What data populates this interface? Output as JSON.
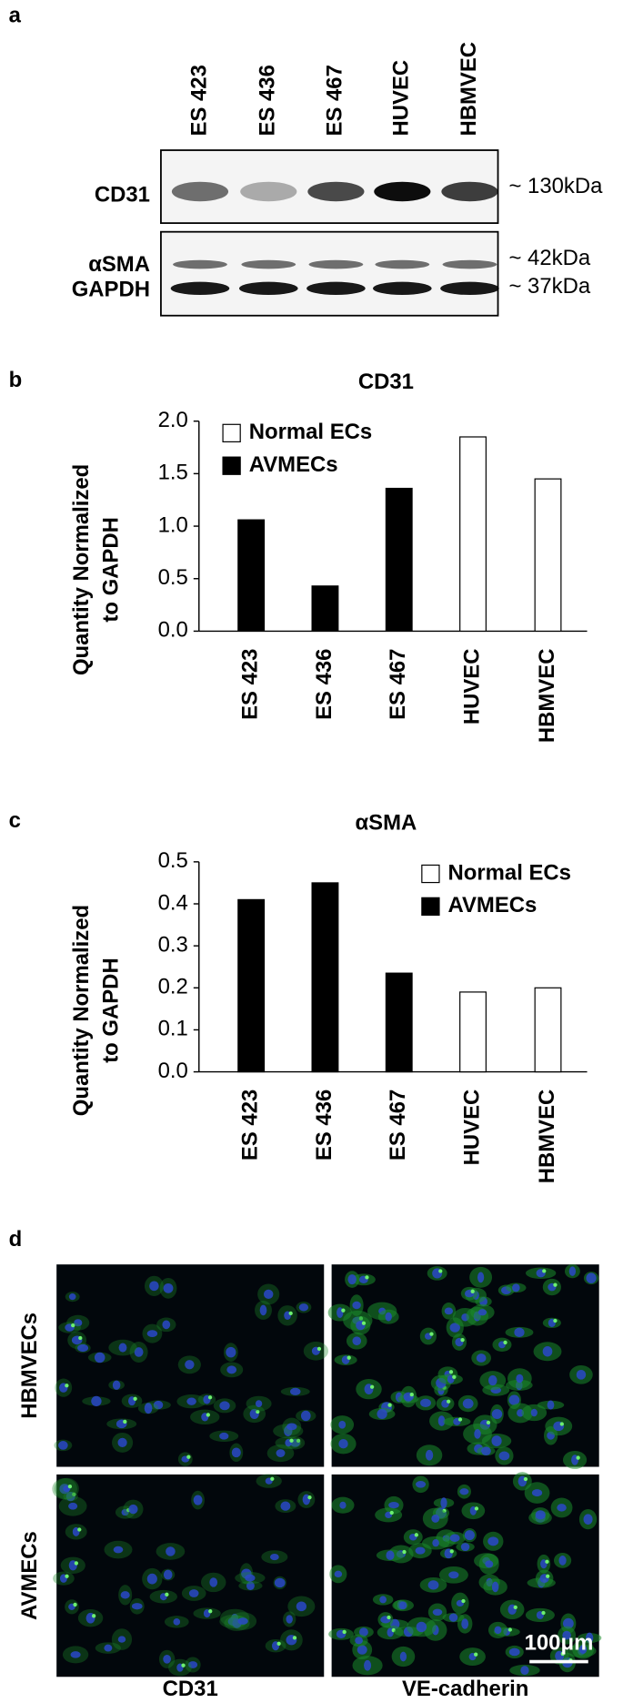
{
  "panel_a": {
    "label": "a",
    "lanes": [
      "ES 423",
      "ES 436",
      "ES 467",
      "HUVEC",
      "HBMVEC"
    ],
    "rows": [
      "CD31",
      "αSMA",
      "GAPDH"
    ],
    "sizes": [
      "~ 130kDa",
      "~ 42kDa",
      "~ 37kDa"
    ]
  },
  "chart_data": [
    {
      "panel": "b",
      "type": "bar",
      "title": "CD31",
      "ylabel": [
        "Quantity Normalized",
        "to GAPDH"
      ],
      "categories": [
        "ES 423",
        "ES 436",
        "ES 467",
        "HUVEC",
        "HBMVEC"
      ],
      "series": [
        {
          "name": "Normal ECs",
          "color": "#ffffff",
          "values": [
            null,
            null,
            null,
            1.85,
            1.45
          ]
        },
        {
          "name": "AVMECs",
          "color": "#000000",
          "values": [
            1.06,
            0.43,
            1.36,
            null,
            null
          ]
        }
      ],
      "ylim": [
        0,
        2
      ],
      "yticks": [
        {
          "value": 0,
          "label": "0.0"
        },
        0.5,
        {
          "value": 1,
          "label": "1.0"
        },
        1.5,
        {
          "value": 2,
          "label": "2.0"
        }
      ],
      "legend": "upper left"
    },
    {
      "panel": "c",
      "type": "bar",
      "title": "αSMA",
      "ylabel": [
        "Quantity Normalized",
        "to GAPDH"
      ],
      "categories": [
        "ES 423",
        "ES 436",
        "ES 467",
        "HUVEC",
        "HBMVEC"
      ],
      "series": [
        {
          "name": "Normal ECs",
          "color": "#ffffff",
          "values": [
            null,
            null,
            null,
            0.19,
            0.2
          ]
        },
        {
          "name": "AVMECs",
          "color": "#000000",
          "values": [
            0.41,
            0.45,
            0.235,
            null,
            null
          ]
        }
      ],
      "ylim": [
        0,
        0.5
      ],
      "yticks": [
        {
          "value": 0,
          "label": "0.0"
        },
        0.1,
        0.2,
        0.3,
        0.4,
        0.5
      ],
      "legend": "upper right"
    }
  ],
  "panel_d": {
    "label": "d",
    "rows": [
      "HBMVECs",
      "AVMECs"
    ],
    "columns": [
      "CD31",
      "VE-cadherin"
    ],
    "scale_bar": "100μm"
  }
}
